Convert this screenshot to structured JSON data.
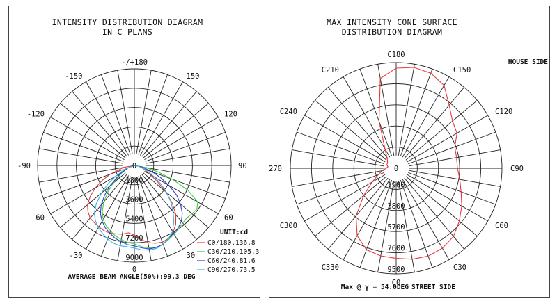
{
  "chart_data": [
    {
      "type": "polar",
      "title": "INTENSITY DISTRIBUTION DIAGRAM",
      "subtitle": "IN C PLANS",
      "angle_labels": [
        {
          "angle": 180,
          "text": "-/+180"
        },
        {
          "angle": 150,
          "text": "150"
        },
        {
          "angle": 120,
          "text": "120"
        },
        {
          "angle": 90,
          "text": "90"
        },
        {
          "angle": 60,
          "text": "60"
        },
        {
          "angle": 30,
          "text": "30"
        },
        {
          "angle": 0,
          "text": "0"
        },
        {
          "angle": -30,
          "text": "-30"
        },
        {
          "angle": -60,
          "text": "-60"
        },
        {
          "angle": -90,
          "text": "-90"
        },
        {
          "angle": -120,
          "text": "-120"
        },
        {
          "angle": -150,
          "text": "-150"
        }
      ],
      "radial_max": 9000,
      "radial_ticks": [
        0,
        1800,
        3600,
        5400,
        7200,
        9000
      ],
      "unit_label": "UNIT:cd",
      "series": [
        {
          "name": "C0/180,136.8",
          "color": "#e8393c",
          "angles": [
            0,
            5,
            10,
            15,
            20,
            25,
            30,
            35,
            40,
            45,
            50,
            55,
            60,
            70,
            80,
            90,
            -5,
            -10,
            -15,
            -20,
            -25,
            -30,
            -35,
            -40,
            -45,
            -50,
            -55,
            -60,
            -65,
            -70,
            -80,
            -90
          ],
          "values": [
            6500,
            6900,
            7300,
            7500,
            7600,
            7500,
            7200,
            6700,
            6000,
            5000,
            3800,
            2600,
            1700,
            900,
            400,
            0,
            6300,
            6500,
            6600,
            6700,
            6700,
            6600,
            6500,
            6400,
            6100,
            5700,
            5000,
            4200,
            3300,
            2400,
            1000,
            0
          ]
        },
        {
          "name": "C30/210,105.3",
          "color": "#3fcc3f",
          "angles": [
            0,
            5,
            10,
            15,
            20,
            25,
            30,
            35,
            40,
            45,
            50,
            55,
            60,
            65,
            70,
            75,
            80,
            90,
            -5,
            -10,
            -15,
            -20,
            -25,
            -30,
            -35,
            -40,
            -45,
            -50,
            -60,
            -70,
            -90
          ],
          "values": [
            7300,
            7600,
            7800,
            7900,
            7800,
            7600,
            7400,
            7200,
            7000,
            6900,
            7000,
            7100,
            6800,
            5500,
            3800,
            2200,
            1000,
            0,
            7200,
            7000,
            6800,
            6500,
            6200,
            5800,
            5200,
            4400,
            3500,
            2600,
            1300,
            600,
            0
          ]
        },
        {
          "name": "C60/240,81.6",
          "color": "#2b3fcc",
          "angles": [
            0,
            5,
            10,
            15,
            20,
            25,
            30,
            35,
            40,
            45,
            50,
            55,
            60,
            65,
            70,
            80,
            90,
            -5,
            -10,
            -15,
            -20,
            -25,
            -30,
            -35,
            -40,
            -45,
            -50,
            -60,
            -70,
            -90
          ],
          "values": [
            7500,
            7700,
            7900,
            7900,
            7800,
            7500,
            7300,
            7100,
            6800,
            6300,
            5600,
            4800,
            3700,
            2700,
            1800,
            700,
            0,
            7400,
            7200,
            7000,
            6700,
            6400,
            6000,
            5500,
            4800,
            3900,
            3000,
            1500,
            600,
            0
          ]
        },
        {
          "name": "C90/270,73.5",
          "color": "#36b4e6",
          "angles": [
            0,
            5,
            10,
            15,
            20,
            25,
            30,
            35,
            40,
            45,
            50,
            55,
            60,
            70,
            80,
            90,
            -5,
            -10,
            -15,
            -20,
            -25,
            -30,
            -35,
            -40,
            -45,
            -50,
            -55,
            -60,
            -70,
            -90
          ],
          "values": [
            7700,
            7900,
            8000,
            8000,
            7800,
            7500,
            7100,
            6400,
            5600,
            4800,
            3900,
            3000,
            2200,
            1100,
            400,
            0,
            7600,
            7600,
            7500,
            7300,
            7000,
            6700,
            6300,
            5800,
            5000,
            4000,
            3000,
            2000,
            900,
            0
          ]
        }
      ],
      "footnote": "AVERAGE BEAM ANGLE(50%):99.3 DEG"
    },
    {
      "type": "polar",
      "title": "MAX INTENSITY CONE SURFACE",
      "subtitle": "DISTRIBUTION DIAGRAM",
      "angle_labels": [
        {
          "angle": 180,
          "text": "C180"
        },
        {
          "angle": 150,
          "text": "C150"
        },
        {
          "angle": 120,
          "text": "C120"
        },
        {
          "angle": 90,
          "text": "C90"
        },
        {
          "angle": 60,
          "text": "C60"
        },
        {
          "angle": 30,
          "text": "C30"
        },
        {
          "angle": 0,
          "text": "C0"
        },
        {
          "angle": -30,
          "text": "C330"
        },
        {
          "angle": -60,
          "text": "C300"
        },
        {
          "angle": -90,
          "text": "C270"
        },
        {
          "angle": -120,
          "text": "C240"
        },
        {
          "angle": -150,
          "text": "C210"
        }
      ],
      "radial_max": 9500,
      "radial_ticks": [
        0,
        1900,
        3800,
        5700,
        7600,
        9500
      ],
      "series": [
        {
          "name": "Max @ γ = 54.0DEG",
          "color": "#e8393c",
          "angles": [
            0,
            10,
            20,
            30,
            40,
            50,
            60,
            70,
            80,
            90,
            100,
            110,
            120,
            130,
            140,
            150,
            160,
            170,
            180,
            190,
            200,
            210,
            220,
            230,
            240,
            250,
            260,
            270,
            280,
            290,
            300,
            310,
            320,
            330,
            340,
            350
          ],
          "values": [
            8100,
            8300,
            8400,
            8300,
            8000,
            7400,
            6800,
            6200,
            5800,
            5500,
            5500,
            5600,
            6300,
            6600,
            7400,
            8600,
            9100,
            9200,
            9000,
            8200,
            4500,
            2000,
            1300,
            1000,
            900,
            900,
            750,
            900,
            1300,
            1700,
            2500,
            3800,
            5600,
            7000,
            7800,
            8000
          ]
        }
      ],
      "top_right_label": "HOUSE SIDE",
      "footnote": "Max @ γ = 54.0DEG",
      "footnote_side": "STREET SIDE"
    }
  ]
}
